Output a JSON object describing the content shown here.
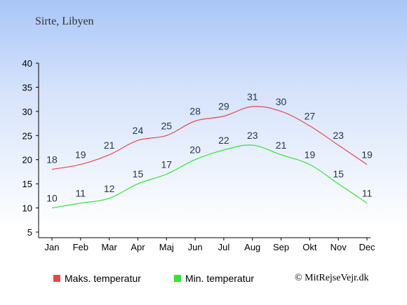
{
  "title": "Sirte, Libyen",
  "legend": {
    "max_label": "Maks. temperatur",
    "min_label": "Min. temperatur"
  },
  "copyright": "© MitRejseVejr.dk",
  "colors": {
    "max": "#e84848",
    "min": "#33e433"
  },
  "chart_data": {
    "type": "line",
    "title": "Sirte, Libyen",
    "categories": [
      "Jan",
      "Feb",
      "Mar",
      "Apr",
      "Maj",
      "Jun",
      "Jul",
      "Aug",
      "Sep",
      "Okt",
      "Nov",
      "Dec"
    ],
    "series": [
      {
        "name": "Maks. temperatur",
        "values": [
          18,
          19,
          21,
          24,
          25,
          28,
          29,
          31,
          30,
          27,
          23,
          19
        ]
      },
      {
        "name": "Min. temperatur",
        "values": [
          10,
          11,
          12,
          15,
          17,
          20,
          22,
          23,
          21,
          19,
          15,
          11
        ]
      }
    ],
    "yticks": [
      5,
      10,
      15,
      20,
      25,
      30,
      35,
      40
    ],
    "ylim": [
      5,
      40
    ],
    "grid": false,
    "legend_position": "bottom-left"
  }
}
